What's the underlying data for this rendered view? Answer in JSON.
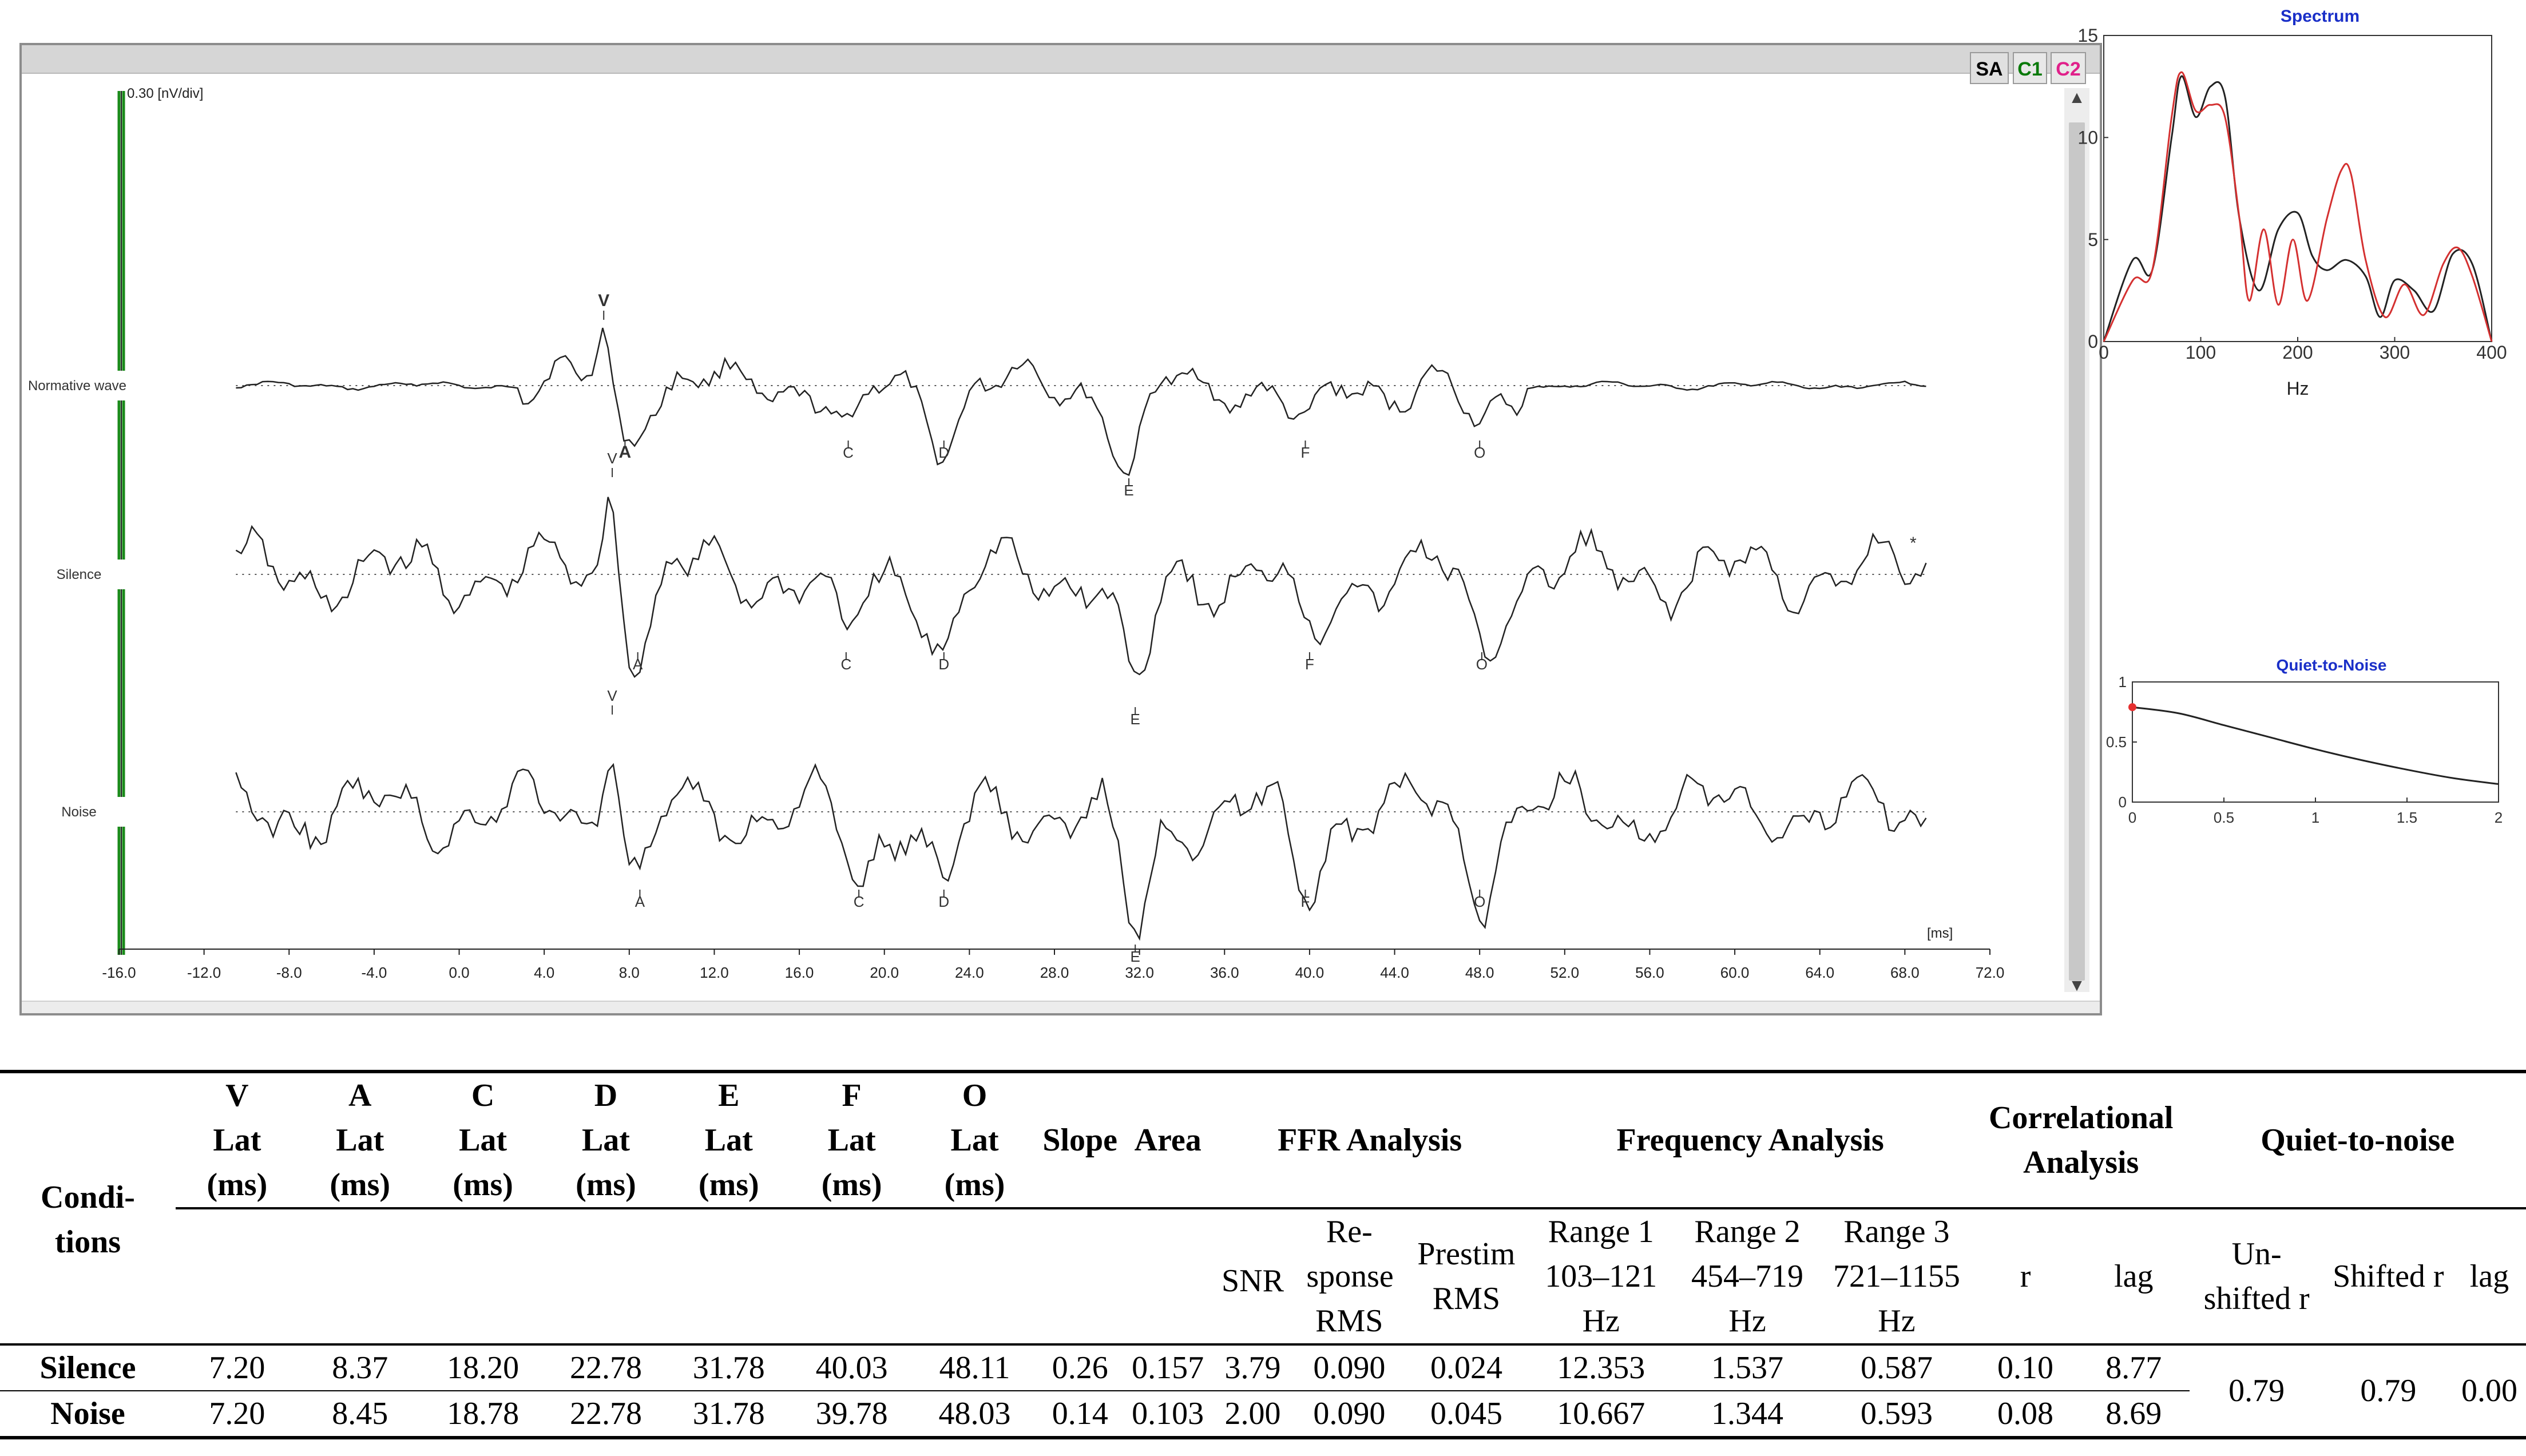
{
  "window": {
    "buttons": {
      "sa": "SA",
      "c1": "C1",
      "c2": "C2"
    },
    "scale_label": "0.30 [nV/div]",
    "x_unit": "[ms]",
    "x_ticks": [
      "-16.0",
      "-12.0",
      "-8.0",
      "-4.0",
      "0.0",
      "4.0",
      "8.0",
      "12.0",
      "16.0",
      "20.0",
      "24.0",
      "28.0",
      "32.0",
      "36.0",
      "40.0",
      "44.0",
      "48.0",
      "52.0",
      "56.0",
      "60.0",
      "64.0",
      "68.0",
      "72.0"
    ],
    "channels": [
      {
        "label": "Normative wave",
        "peaks": [
          {
            "name": "V",
            "ms": 6.8
          },
          {
            "name": "A",
            "ms": 7.8
          },
          {
            "name": "C",
            "ms": 18.3
          },
          {
            "name": "D",
            "ms": 22.8
          },
          {
            "name": "E",
            "ms": 31.5
          },
          {
            "name": "F",
            "ms": 39.8
          },
          {
            "name": "O",
            "ms": 48.0
          }
        ]
      },
      {
        "label": "Silence",
        "peaks": [
          {
            "name": "V",
            "ms": 7.2
          },
          {
            "name": "A",
            "ms": 8.4
          },
          {
            "name": "C",
            "ms": 18.2
          },
          {
            "name": "D",
            "ms": 22.8
          },
          {
            "name": "E",
            "ms": 31.8
          },
          {
            "name": "F",
            "ms": 40.0
          },
          {
            "name": "O",
            "ms": 48.1
          }
        ]
      },
      {
        "label": "Noise",
        "peaks": [
          {
            "name": "V",
            "ms": 7.2
          },
          {
            "name": "A",
            "ms": 8.5
          },
          {
            "name": "C",
            "ms": 18.8
          },
          {
            "name": "D",
            "ms": 22.8
          },
          {
            "name": "E",
            "ms": 31.8
          },
          {
            "name": "F",
            "ms": 39.8
          },
          {
            "name": "O",
            "ms": 48.0
          }
        ]
      }
    ],
    "marker": "*"
  },
  "chart_data": [
    {
      "type": "line",
      "title": "Spectrum",
      "xlabel": "Hz",
      "ylabel": "",
      "xlim": [
        0,
        400
      ],
      "ylim": [
        0,
        15
      ],
      "x_ticks": [
        "0",
        "100",
        "200",
        "300",
        "400"
      ],
      "y_ticks": [
        "0",
        "5",
        "10",
        "15"
      ],
      "series": [
        {
          "name": "black",
          "color": "#222222",
          "x": [
            0,
            30,
            50,
            70,
            80,
            95,
            110,
            125,
            140,
            160,
            180,
            200,
            215,
            230,
            250,
            270,
            285,
            300,
            320,
            340,
            360,
            380,
            400
          ],
          "values": [
            0,
            4,
            3.5,
            10,
            13,
            11,
            12.5,
            12,
            6,
            2.5,
            5.5,
            6.3,
            4.2,
            3.5,
            4.0,
            3.2,
            1.2,
            3.0,
            2.5,
            1.5,
            4.3,
            3.8,
            0
          ]
        },
        {
          "name": "red",
          "color": "#d43030",
          "x": [
            0,
            30,
            50,
            70,
            80,
            95,
            110,
            125,
            140,
            150,
            165,
            180,
            195,
            210,
            230,
            245,
            255,
            270,
            290,
            310,
            330,
            350,
            365,
            380,
            400
          ],
          "values": [
            0,
            3,
            3.5,
            11,
            13.2,
            11.3,
            11.6,
            11,
            6,
            2,
            5.5,
            1.8,
            5.0,
            2.0,
            6.0,
            8.4,
            8.2,
            4,
            1.2,
            2.8,
            1.3,
            3.8,
            4.6,
            3.2,
            0
          ]
        }
      ]
    },
    {
      "type": "line",
      "title": "Quiet-to-Noise",
      "xlabel": "",
      "ylabel": "",
      "xlim": [
        0,
        2
      ],
      "ylim": [
        0,
        1
      ],
      "x_ticks": [
        "0",
        "0.5",
        "1",
        "1.5",
        "2"
      ],
      "y_ticks": [
        "0",
        "0.5",
        "1"
      ],
      "series": [
        {
          "name": "r",
          "color": "#222222",
          "x": [
            0,
            0.25,
            0.5,
            0.75,
            1.0,
            1.25,
            1.5,
            1.75,
            2.0
          ],
          "values": [
            0.79,
            0.74,
            0.64,
            0.54,
            0.44,
            0.35,
            0.27,
            0.2,
            0.15
          ]
        }
      ],
      "point": {
        "x": 0,
        "y": 0.79,
        "color": "#e53030"
      }
    }
  ],
  "table": {
    "conditions_header": "Condi-tions",
    "lat_headers": [
      {
        "peak": "V",
        "lat": "Lat",
        "unit": "(ms)"
      },
      {
        "peak": "A",
        "lat": "Lat",
        "unit": "(ms)"
      },
      {
        "peak": "C",
        "lat": "Lat",
        "unit": "(ms)"
      },
      {
        "peak": "D",
        "lat": "Lat",
        "unit": "(ms)"
      },
      {
        "peak": "E",
        "lat": "Lat",
        "unit": "(ms)"
      },
      {
        "peak": "F",
        "lat": "Lat",
        "unit": "(ms)"
      },
      {
        "peak": "O",
        "lat": "Lat",
        "unit": "(ms)"
      }
    ],
    "slope": "Slope",
    "area": "Area",
    "groups": {
      "ffr": "FFR Analysis",
      "frequency": "Frequency Analysis",
      "correlational": "Correlational Analysis",
      "q2n": "Quiet-to-noise"
    },
    "subheaders": {
      "snr": "SNR",
      "response_rms": "Re-sponse RMS",
      "prestim_rms": "Prestim RMS",
      "range1": "Range 1 103–121 Hz",
      "range2": "Range 2 454–719 Hz",
      "range3": "Range 3 721–1155 Hz",
      "r": "r",
      "lag": "lag",
      "unshifted_r": "Un-shifted r",
      "shifted_r": "Shifted r",
      "q2n_lag": "lag"
    },
    "rows": [
      {
        "condition": "Silence",
        "values": [
          "7.20",
          "8.37",
          "18.20",
          "22.78",
          "31.78",
          "40.03",
          "48.11",
          "0.26",
          "0.157",
          "3.79",
          "0.090",
          "0.024",
          "12.353",
          "1.537",
          "0.587",
          "0.10",
          "8.77"
        ]
      },
      {
        "condition": "Noise",
        "values": [
          "7.20",
          "8.45",
          "18.78",
          "22.78",
          "31.78",
          "39.78",
          "48.03",
          "0.14",
          "0.103",
          "2.00",
          "0.090",
          "0.045",
          "10.667",
          "1.344",
          "0.593",
          "0.08",
          "8.69"
        ]
      }
    ],
    "q2n_values": {
      "unshifted_r": "0.79",
      "shifted_r": "0.79",
      "lag": "0.00"
    }
  }
}
